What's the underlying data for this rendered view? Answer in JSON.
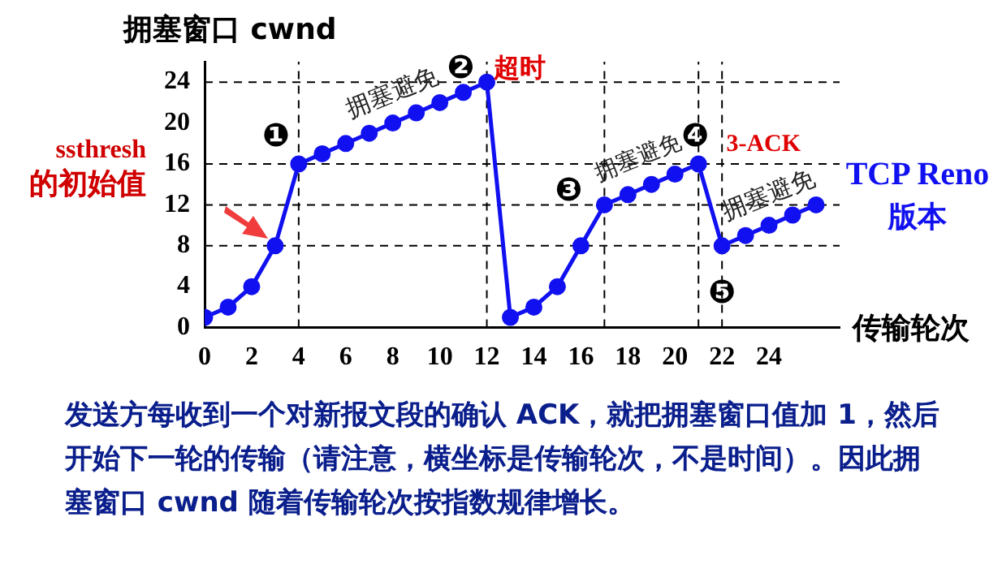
{
  "chart_data": {
    "type": "line",
    "xlabel": "传输轮次",
    "ylabel": "拥塞窗口 cwnd",
    "x": [
      0,
      1,
      2,
      3,
      4,
      5,
      6,
      7,
      8,
      9,
      10,
      11,
      12,
      13,
      14,
      15,
      16,
      17,
      18,
      19,
      20,
      21,
      22,
      23,
      24,
      25,
      26
    ],
    "series": [
      {
        "color": "#1010f0",
        "values": [
          1,
          2,
          4,
          8,
          16,
          17,
          18,
          19,
          20,
          21,
          22,
          23,
          24,
          1,
          2,
          4,
          8,
          12,
          13,
          14,
          15,
          16,
          8,
          9,
          10,
          11,
          12
        ]
      }
    ],
    "xlim": [
      0,
      27
    ],
    "xticks": [
      0,
      2,
      4,
      6,
      8,
      10,
      12,
      14,
      16,
      18,
      20,
      22,
      24
    ],
    "ylim": [
      0,
      26
    ],
    "yticks": [
      0,
      4,
      8,
      12,
      16,
      20,
      24
    ],
    "grid": false,
    "legend": false,
    "marker": "circle",
    "line_style": "solid",
    "ref_lines": [
      {
        "axis": "y",
        "value": 24,
        "line_style": "dashed"
      },
      {
        "axis": "y",
        "value": 16,
        "line_style": "dashed"
      },
      {
        "axis": "y",
        "value": 12,
        "line_style": "dashed"
      },
      {
        "axis": "y",
        "value": 8,
        "line_style": "dashed"
      },
      {
        "axis": "x",
        "value": 4,
        "line_style": "dashed"
      },
      {
        "axis": "x",
        "value": 12,
        "line_style": "dashed"
      },
      {
        "axis": "x",
        "value": 17,
        "line_style": "dashed"
      },
      {
        "axis": "x",
        "value": 21,
        "line_style": "dashed"
      },
      {
        "axis": "x",
        "value": 22,
        "line_style": "dashed"
      }
    ],
    "annotations": [
      {
        "text": "❶",
        "x": 4,
        "y": 16
      },
      {
        "text": "❷",
        "x": 12,
        "y": 24
      },
      {
        "text": "超时",
        "x": 12,
        "y": 24
      },
      {
        "text": "拥塞避免",
        "x": 8,
        "y": 20
      },
      {
        "text": "❸",
        "x": 17,
        "y": 12
      },
      {
        "text": "拥塞避免",
        "x": 19,
        "y": 14
      },
      {
        "text": "❹",
        "x": 21,
        "y": 16
      },
      {
        "text": "3-ACK",
        "x": 21,
        "y": 16
      },
      {
        "text": "拥塞避免",
        "x": 24,
        "y": 10
      },
      {
        "text": "❺",
        "x": 22,
        "y": 8
      },
      "ssthresh 的初始值",
      "TCP Reno 版本",
      "发送方每收到一个对新报文段的确认 ACK，就把拥塞窗口值加 1，然后开始下一轮的传输（请注意，横坐标是传输轮次，不是时间）。因此拥塞窗口 cwnd 随着传输轮次按指数规律增长。"
    ]
  }
}
